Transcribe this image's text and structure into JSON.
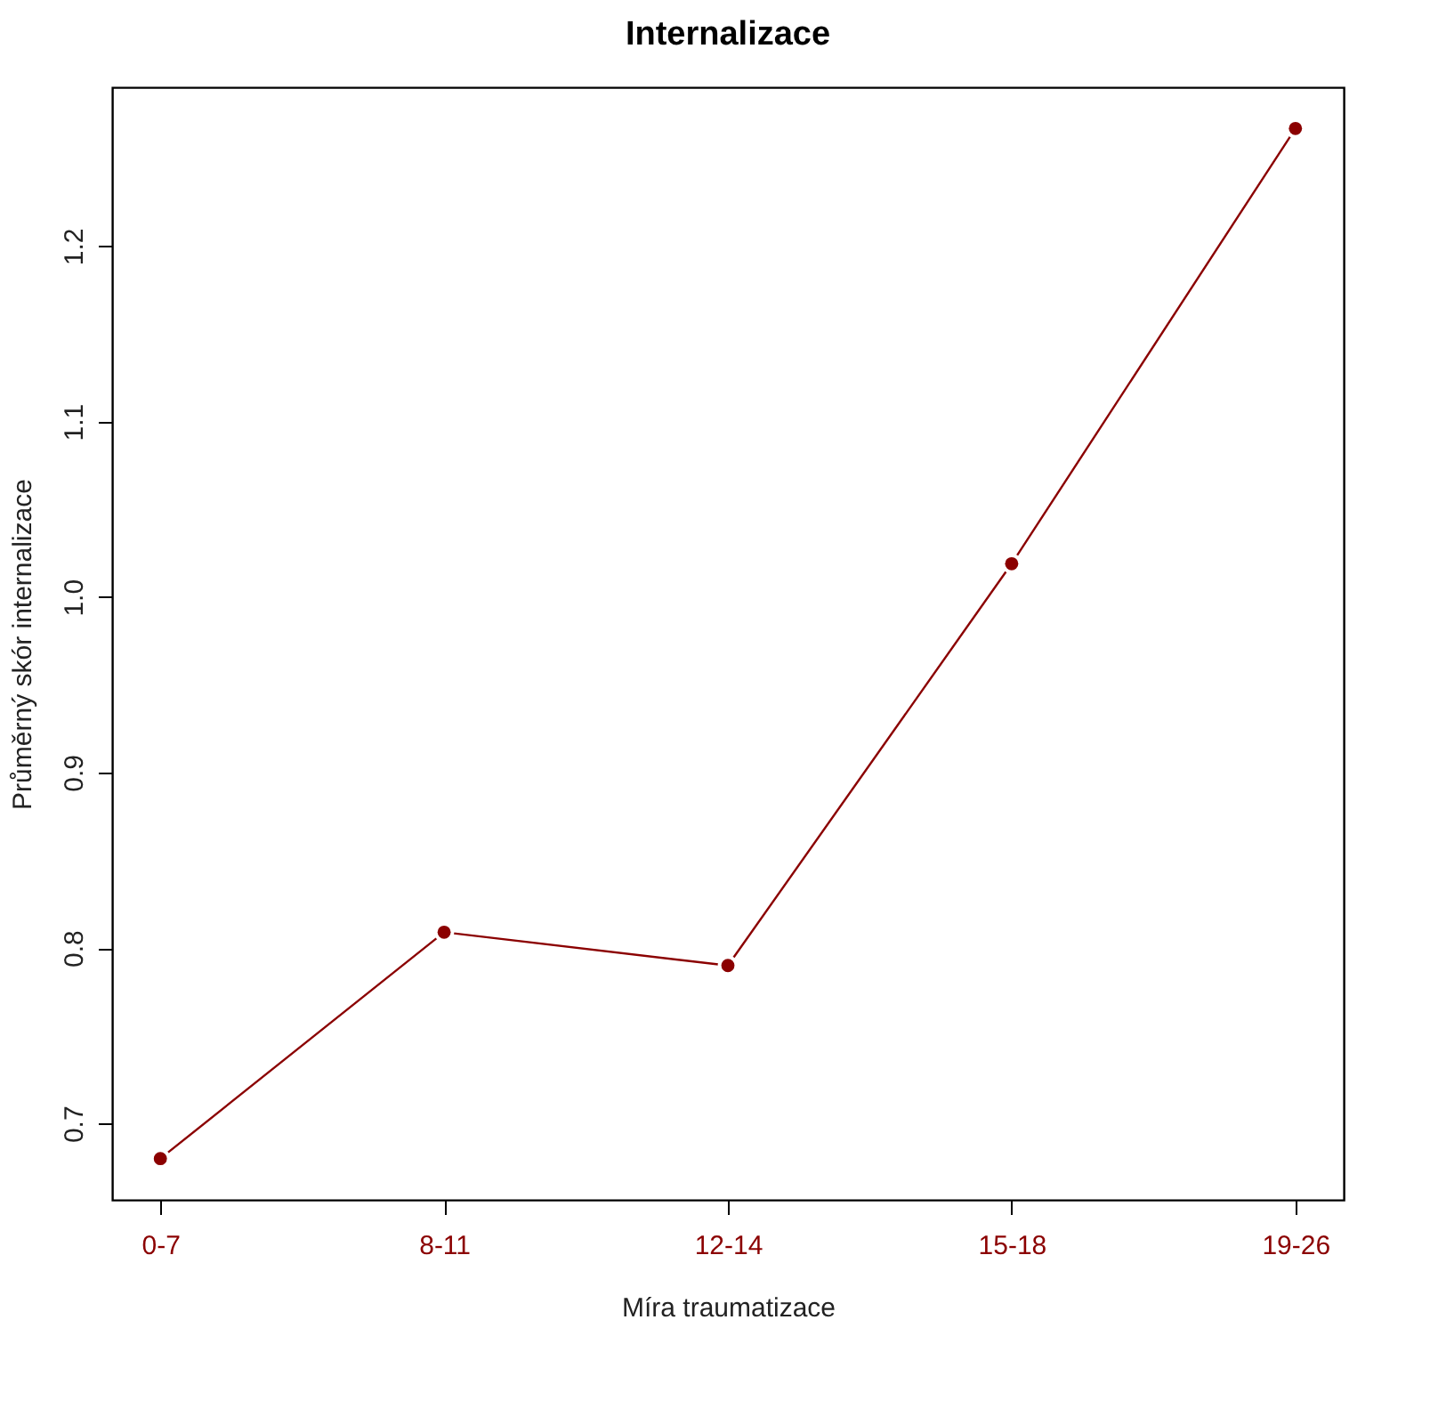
{
  "chart_data": {
    "type": "line",
    "title": "Internalizace",
    "xlabel": "Míra traumatizace",
    "ylabel": "Průměrný skór internalizace",
    "categories": [
      "0-7",
      "8-11",
      "12-14",
      "15-18",
      "19-26"
    ],
    "series": [
      {
        "color": "#8b0000",
        "values": [
          0.68,
          0.809,
          0.79,
          1.019,
          1.267
        ]
      }
    ],
    "ylim": [
      0.6565,
      1.2905
    ],
    "yticks": [
      0.7,
      0.8,
      0.9,
      {
        "value": 1,
        "label": "1.0"
      },
      1.1,
      1.2
    ],
    "marker": "circle",
    "line_style": "solid",
    "grid": false
  }
}
